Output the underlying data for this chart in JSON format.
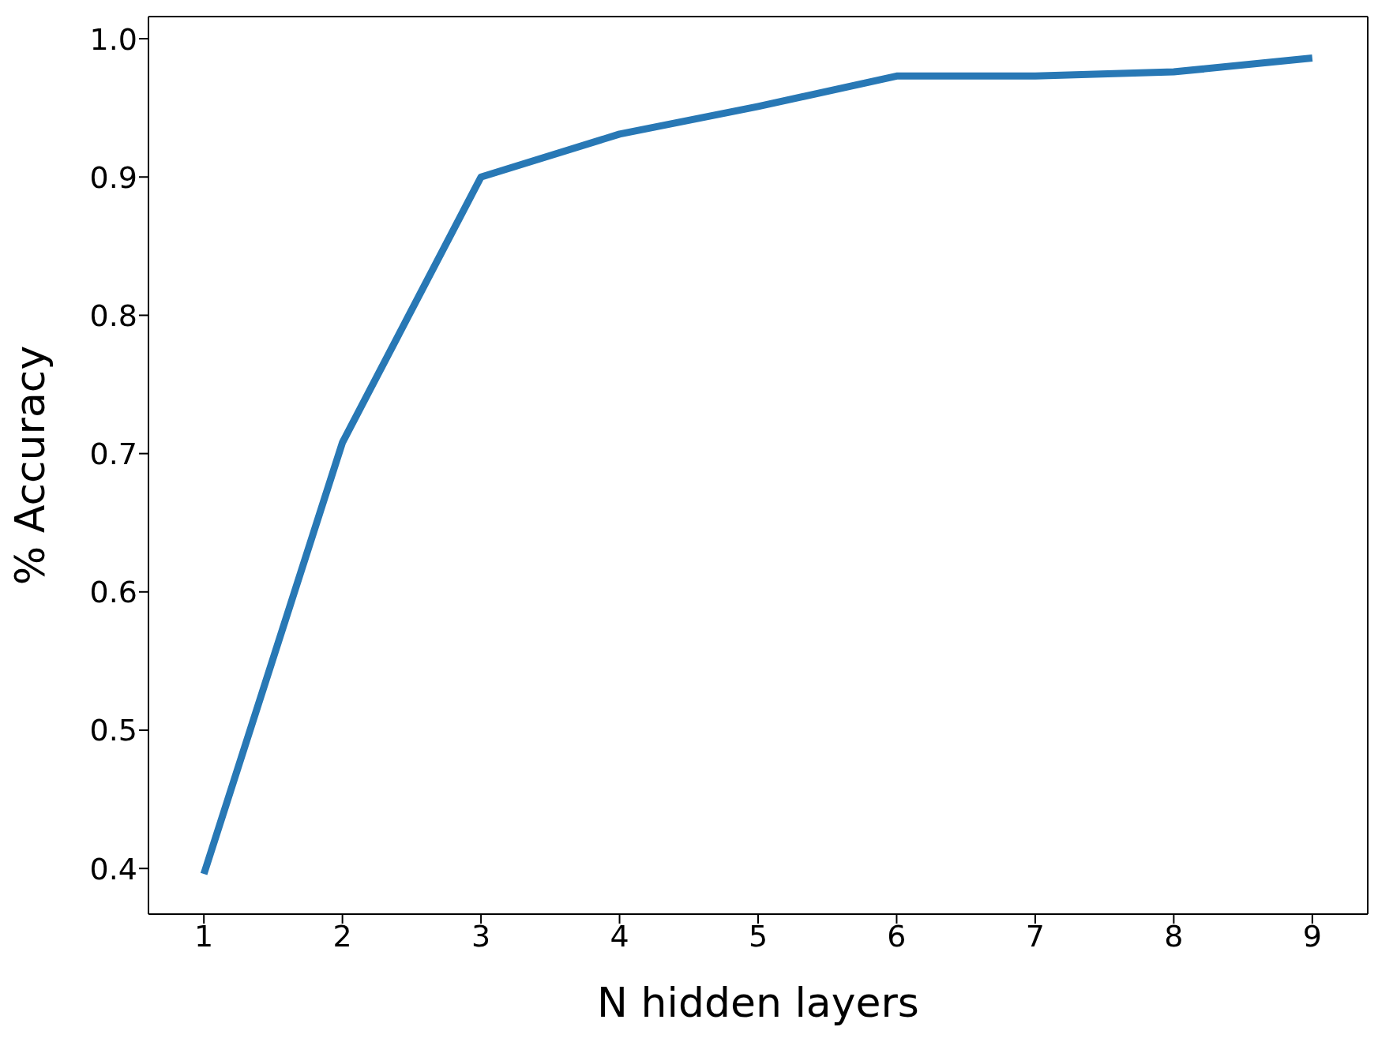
{
  "chart_data": {
    "type": "line",
    "xlabel": "N hidden layers",
    "ylabel": "% Accuracy",
    "x": [
      1,
      2,
      3,
      4,
      5,
      6,
      7,
      8,
      9
    ],
    "series": [
      {
        "color": "#2878b5",
        "values": [
          0.396,
          0.708,
          0.9,
          0.931,
          0.951,
          0.973,
          0.973,
          0.976,
          0.986
        ]
      }
    ],
    "xlim": [
      0.6,
      9.4
    ],
    "xticks": [
      1,
      2,
      3,
      4,
      5,
      6,
      7,
      8,
      9
    ],
    "ylim": [
      0.367,
      1.016
    ],
    "yticks": [
      {
        "value": 0.4,
        "label": "0.4"
      },
      {
        "value": 0.5,
        "label": "0.5"
      },
      {
        "value": 0.6,
        "label": "0.6"
      },
      {
        "value": 0.7,
        "label": "0.7"
      },
      {
        "value": 0.8,
        "label": "0.8"
      },
      {
        "value": 0.9,
        "label": "0.9"
      },
      {
        "value": 1.0,
        "label": "1.0"
      }
    ],
    "grid": false,
    "legend": false,
    "marker": "none",
    "line_style": "solid"
  }
}
